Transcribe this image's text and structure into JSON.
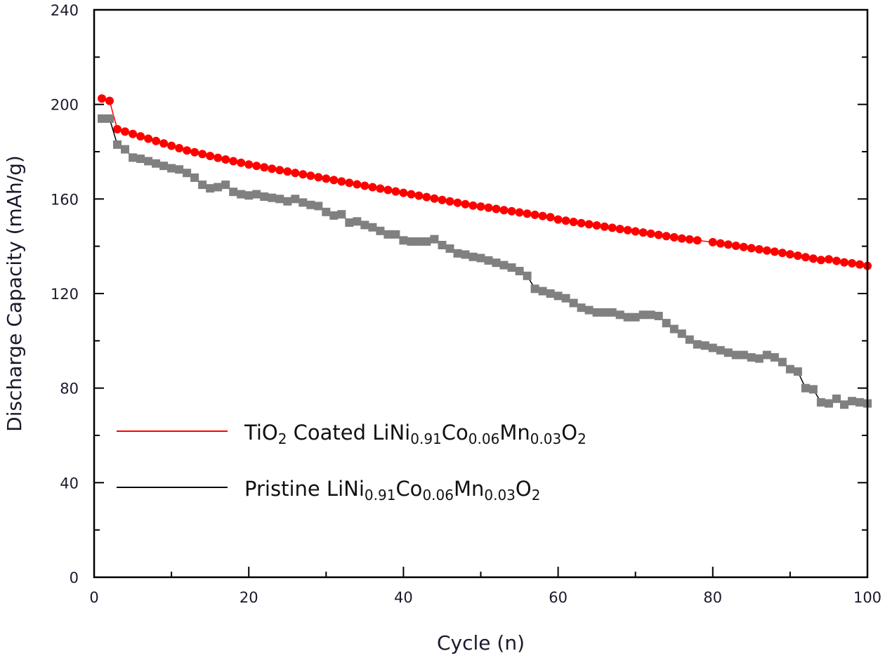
{
  "chart_data": {
    "type": "scatter",
    "title": "",
    "xlabel": "Cycle (n)",
    "ylabel": "Discharge Capacity (mAh/g)",
    "xlim": [
      0,
      100
    ],
    "ylim": [
      0,
      240
    ],
    "xticks": [
      "0",
      "20",
      "40",
      "60",
      "80",
      "100"
    ],
    "yticks": [
      "0",
      "40",
      "80",
      "120",
      "160",
      "200",
      "240"
    ],
    "grid": false,
    "legend_position": "lower-left",
    "series": [
      {
        "name": "TiO2 Coated LiNi0.91Co0.06Mn0.03O2",
        "legend_parts": [
          {
            "t": "TiO",
            "sub": false
          },
          {
            "t": "2",
            "sub": true
          },
          {
            "t": " Coated LiNi",
            "sub": false
          },
          {
            "t": "0.91",
            "sub": true
          },
          {
            "t": "Co",
            "sub": false
          },
          {
            "t": "0.06",
            "sub": true
          },
          {
            "t": "Mn",
            "sub": false
          },
          {
            "t": "0.03",
            "sub": true
          },
          {
            "t": "O",
            "sub": false
          },
          {
            "t": "2",
            "sub": true
          }
        ],
        "color": "#ff0000",
        "line_color": "#ff0000",
        "marker": "circle",
        "x": [
          1,
          2,
          3,
          4,
          5,
          6,
          7,
          8,
          9,
          10,
          11,
          12,
          13,
          14,
          15,
          16,
          17,
          18,
          19,
          20,
          21,
          22,
          23,
          24,
          25,
          26,
          27,
          28,
          29,
          30,
          31,
          32,
          33,
          34,
          35,
          36,
          37,
          38,
          39,
          40,
          41,
          42,
          43,
          44,
          45,
          46,
          47,
          48,
          49,
          50,
          51,
          52,
          53,
          54,
          55,
          56,
          57,
          58,
          59,
          60,
          61,
          62,
          63,
          64,
          65,
          66,
          67,
          68,
          69,
          70,
          71,
          72,
          73,
          74,
          75,
          76,
          77,
          78,
          80,
          81,
          82,
          83,
          84,
          85,
          86,
          87,
          88,
          89,
          90,
          91,
          92,
          93,
          94,
          95,
          96,
          97,
          98,
          99,
          100
        ],
        "values": [
          202.5,
          201.5,
          189.5,
          188.5,
          187.5,
          186.5,
          185.5,
          184.5,
          183.5,
          182.5,
          181.5,
          180.5,
          179.8,
          179,
          178.2,
          177.4,
          176.7,
          176,
          175.3,
          174.6,
          174,
          173.4,
          172.8,
          172.2,
          171.6,
          171,
          170.4,
          169.8,
          169.2,
          168.6,
          168,
          167.4,
          166.8,
          166.2,
          165.6,
          165,
          164.4,
          163.8,
          163.2,
          162.6,
          162,
          161.4,
          160.8,
          160.2,
          159.6,
          159,
          158.4,
          157.8,
          157.2,
          156.8,
          156.3,
          155.8,
          155.3,
          154.8,
          154.3,
          153.8,
          153.3,
          152.8,
          152.3,
          151.3,
          150.8,
          150.3,
          149.8,
          149.3,
          148.8,
          148.3,
          147.8,
          147.3,
          146.8,
          146.3,
          145.8,
          145.3,
          144.8,
          144.3,
          143.8,
          143.3,
          142.9,
          142.5,
          141.7,
          141.2,
          140.7,
          140.2,
          139.7,
          139.2,
          138.7,
          138.2,
          137.7,
          137.2,
          136.6,
          136,
          135.4,
          134.8,
          134.2,
          134.5,
          133.8,
          133.2,
          132.8,
          132.3,
          131.7
        ]
      },
      {
        "name": "Pristine LiNi0.91Co0.06Mn0.03O2",
        "legend_parts": [
          {
            "t": "Pristine LiNi",
            "sub": false
          },
          {
            "t": "0.91",
            "sub": true
          },
          {
            "t": "Co",
            "sub": false
          },
          {
            "t": "0.06",
            "sub": true
          },
          {
            "t": "Mn",
            "sub": false
          },
          {
            "t": "0.03",
            "sub": true
          },
          {
            "t": "O",
            "sub": false
          },
          {
            "t": "2",
            "sub": true
          }
        ],
        "color": "#808080",
        "line_color": "#000000",
        "marker": "square",
        "x": [
          1,
          2,
          3,
          4,
          5,
          6,
          7,
          8,
          9,
          10,
          11,
          12,
          13,
          14,
          15,
          16,
          17,
          18,
          19,
          20,
          21,
          22,
          23,
          24,
          25,
          26,
          27,
          28,
          29,
          30,
          31,
          32,
          33,
          34,
          35,
          36,
          37,
          38,
          39,
          40,
          41,
          42,
          43,
          44,
          45,
          46,
          47,
          48,
          49,
          50,
          51,
          52,
          53,
          54,
          55,
          56,
          57,
          58,
          59,
          60,
          61,
          62,
          63,
          64,
          65,
          66,
          67,
          68,
          69,
          70,
          71,
          72,
          73,
          74,
          75,
          76,
          77,
          78,
          79,
          80,
          81,
          82,
          83,
          84,
          85,
          86,
          87,
          88,
          89,
          90,
          91,
          92,
          93,
          94,
          95,
          96,
          97,
          98,
          99,
          100
        ],
        "values": [
          194,
          194,
          183,
          181,
          177.5,
          177,
          176,
          175,
          174,
          173,
          172.5,
          171,
          169,
          166,
          164.5,
          165,
          166,
          163,
          162,
          161.5,
          162,
          161,
          160.5,
          160,
          159,
          160,
          158.5,
          157.5,
          157,
          154.5,
          153,
          153.5,
          150,
          150.5,
          149,
          148,
          146.5,
          145,
          145,
          142.5,
          142,
          142,
          142,
          143,
          140.5,
          139,
          137,
          136.5,
          135.5,
          135,
          134,
          133,
          132,
          131,
          129.5,
          127.5,
          122,
          121,
          120,
          119,
          118,
          116,
          114,
          113,
          112,
          112,
          112,
          111,
          110,
          110,
          111,
          111,
          110.5,
          107.5,
          105,
          103,
          100.5,
          98.5,
          98,
          97,
          96,
          95,
          94,
          94,
          93,
          92.5,
          94,
          93,
          91,
          88,
          87,
          80,
          79.5,
          74,
          73.5,
          75.5,
          73,
          74.5,
          74,
          73.5
        ]
      }
    ]
  }
}
